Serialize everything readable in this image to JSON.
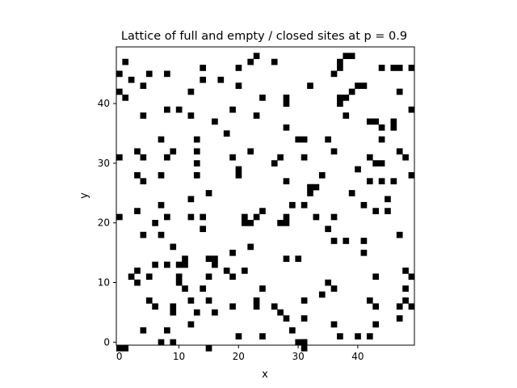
{
  "chart_data": {
    "type": "heatmap",
    "title": "Lattice of full and empty / closed sites at p = 0.9",
    "xlabel": "x",
    "ylabel": "y",
    "xlim": [
      -0.5,
      49.5
    ],
    "ylim": [
      49.5,
      -0.5
    ],
    "xticks": [
      0,
      10,
      20,
      30,
      40
    ],
    "yticks": [
      0,
      10,
      20,
      30,
      40
    ],
    "grid": false,
    "colors": {
      "full": "#ffffff",
      "closed": "#000000",
      "axes": "#000000"
    },
    "closed_sites": [
      [
        0,
        0
      ],
      [
        1,
        0
      ],
      [
        15,
        0
      ],
      [
        31,
        0
      ],
      [
        31,
        1
      ],
      [
        7,
        1
      ],
      [
        9,
        1
      ],
      [
        20,
        2
      ],
      [
        24,
        2
      ],
      [
        30,
        1
      ],
      [
        37,
        2
      ],
      [
        40,
        2
      ],
      [
        42,
        2
      ],
      [
        31,
        1
      ],
      [
        4,
        3
      ],
      [
        8,
        3
      ],
      [
        29,
        3
      ],
      [
        12,
        4
      ],
      [
        36,
        4
      ],
      [
        43,
        4
      ],
      [
        28,
        5
      ],
      [
        31,
        5
      ],
      [
        47,
        5
      ],
      [
        9,
        6
      ],
      [
        13,
        6
      ],
      [
        16,
        6
      ],
      [
        27,
        6
      ],
      [
        6,
        7
      ],
      [
        9,
        7
      ],
      [
        19,
        7
      ],
      [
        23,
        7
      ],
      [
        26,
        7
      ],
      [
        43,
        7
      ],
      [
        47,
        7
      ],
      [
        49,
        7
      ],
      [
        5,
        8
      ],
      [
        12,
        8
      ],
      [
        15,
        8
      ],
      [
        23,
        8
      ],
      [
        31,
        8
      ],
      [
        42,
        8
      ],
      [
        48,
        8
      ],
      [
        34,
        9
      ],
      [
        11,
        10
      ],
      [
        14,
        10
      ],
      [
        24,
        10
      ],
      [
        36,
        10
      ],
      [
        48,
        10
      ],
      [
        3,
        11
      ],
      [
        10,
        11
      ],
      [
        35,
        11
      ],
      [
        2,
        12
      ],
      [
        5,
        12
      ],
      [
        10,
        12
      ],
      [
        15,
        12
      ],
      [
        19,
        12
      ],
      [
        43,
        12
      ],
      [
        49,
        12
      ],
      [
        3,
        13
      ],
      [
        18,
        13
      ],
      [
        21,
        13
      ],
      [
        48,
        13
      ],
      [
        6,
        14
      ],
      [
        8,
        14
      ],
      [
        10,
        14
      ],
      [
        11,
        14
      ],
      [
        16,
        14
      ],
      [
        11,
        15
      ],
      [
        15,
        15
      ],
      [
        16,
        15
      ],
      [
        28,
        15
      ],
      [
        30,
        15
      ],
      [
        19,
        16
      ],
      [
        41,
        16
      ],
      [
        9,
        17
      ],
      [
        22,
        17
      ],
      [
        36,
        18
      ],
      [
        38,
        18
      ],
      [
        41,
        18
      ],
      [
        4,
        19
      ],
      [
        7,
        19
      ],
      [
        47,
        19
      ],
      [
        14,
        20
      ],
      [
        35,
        20
      ],
      [
        6,
        21
      ],
      [
        21,
        21
      ],
      [
        22,
        21
      ],
      [
        27,
        21
      ],
      [
        28,
        21
      ],
      [
        0,
        22
      ],
      [
        8,
        22
      ],
      [
        12,
        22
      ],
      [
        14,
        22
      ],
      [
        21,
        22
      ],
      [
        23,
        22
      ],
      [
        28,
        22
      ],
      [
        33,
        22
      ],
      [
        36,
        22
      ],
      [
        3,
        23
      ],
      [
        24,
        23
      ],
      [
        43,
        23
      ],
      [
        45,
        23
      ],
      [
        7,
        24
      ],
      [
        29,
        24
      ],
      [
        31,
        24
      ],
      [
        41,
        24
      ],
      [
        12,
        25
      ],
      [
        45,
        25
      ],
      [
        15,
        26
      ],
      [
        32,
        26
      ],
      [
        39,
        26
      ],
      [
        32,
        27
      ],
      [
        33,
        27
      ],
      [
        4,
        28
      ],
      [
        28,
        28
      ],
      [
        42,
        28
      ],
      [
        44,
        28
      ],
      [
        46,
        28
      ],
      [
        3,
        29
      ],
      [
        7,
        29
      ],
      [
        13,
        29
      ],
      [
        20,
        29
      ],
      [
        34,
        29
      ],
      [
        49,
        29
      ],
      [
        20,
        30
      ],
      [
        40,
        30
      ],
      [
        13,
        31
      ],
      [
        26,
        31
      ],
      [
        43,
        31
      ],
      [
        44,
        31
      ],
      [
        0,
        32
      ],
      [
        4,
        32
      ],
      [
        8,
        32
      ],
      [
        19,
        32
      ],
      [
        27,
        32
      ],
      [
        31,
        32
      ],
      [
        42,
        32
      ],
      [
        48,
        32
      ],
      [
        3,
        33
      ],
      [
        9,
        33
      ],
      [
        13,
        33
      ],
      [
        22,
        33
      ],
      [
        36,
        33
      ],
      [
        47,
        33
      ],
      [
        7,
        35
      ],
      [
        13,
        35
      ],
      [
        30,
        35
      ],
      [
        31,
        35
      ],
      [
        35,
        35
      ],
      [
        44,
        35
      ],
      [
        18,
        36
      ],
      [
        28,
        37
      ],
      [
        44,
        37
      ],
      [
        46,
        37
      ],
      [
        16,
        38
      ],
      [
        42,
        38
      ],
      [
        43,
        38
      ],
      [
        46,
        38
      ],
      [
        4,
        39
      ],
      [
        12,
        39
      ],
      [
        23,
        39
      ],
      [
        38,
        39
      ],
      [
        8,
        40
      ],
      [
        10,
        40
      ],
      [
        19,
        40
      ],
      [
        49,
        40
      ],
      [
        28,
        41
      ],
      [
        37,
        41
      ],
      [
        1,
        42
      ],
      [
        24,
        42
      ],
      [
        28,
        42
      ],
      [
        37,
        42
      ],
      [
        38,
        42
      ],
      [
        0,
        43
      ],
      [
        12,
        43
      ],
      [
        39,
        43
      ],
      [
        47,
        43
      ],
      [
        4,
        44
      ],
      [
        20,
        44
      ],
      [
        32,
        44
      ],
      [
        40,
        44
      ],
      [
        41,
        44
      ],
      [
        2,
        45
      ],
      [
        14,
        45
      ],
      [
        17,
        45
      ],
      [
        0,
        46
      ],
      [
        5,
        46
      ],
      [
        8,
        46
      ],
      [
        36,
        46
      ],
      [
        14,
        47
      ],
      [
        20,
        47
      ],
      [
        37,
        47
      ],
      [
        44,
        47
      ],
      [
        46,
        47
      ],
      [
        47,
        47
      ],
      [
        49,
        47
      ],
      [
        1,
        48
      ],
      [
        22,
        48
      ],
      [
        26,
        48
      ],
      [
        37,
        48
      ],
      [
        23,
        49
      ],
      [
        38,
        49
      ],
      [
        39,
        49
      ]
    ]
  }
}
